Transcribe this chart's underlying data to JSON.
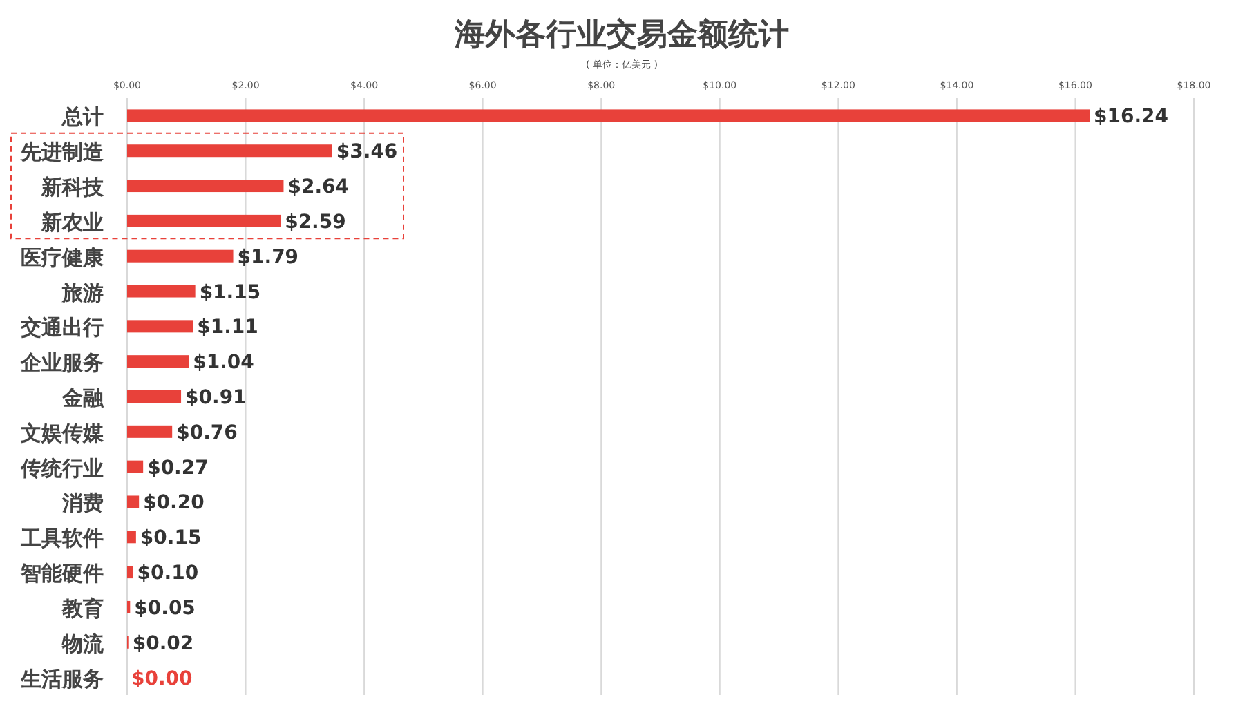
{
  "chart_data": {
    "type": "bar",
    "orientation": "horizontal",
    "title": "海外各行业交易金额统计",
    "subtitle": "( 单位：亿美元 )",
    "categories": [
      "总计",
      "先进制造",
      "新科技",
      "新农业",
      "医疗健康",
      "旅游",
      "交通出行",
      "企业服务",
      "金融",
      "文娱传媒",
      "传统行业",
      "消费",
      "工具软件",
      "智能硬件",
      "教育",
      "物流",
      "生活服务"
    ],
    "values": [
      16.24,
      3.46,
      2.64,
      2.59,
      1.79,
      1.15,
      1.11,
      1.04,
      0.91,
      0.76,
      0.27,
      0.2,
      0.15,
      0.1,
      0.05,
      0.02,
      0.0
    ],
    "value_labels": [
      "$16.24",
      "$3.46",
      "$2.64",
      "$2.59",
      "$1.79",
      "$1.15",
      "$1.11",
      "$1.04",
      "$0.91",
      "$0.76",
      "$0.27",
      "$0.20",
      "$0.15",
      "$0.10",
      "$0.05",
      "$0.02",
      "$0.00"
    ],
    "color": "#e8413a",
    "xlim": [
      0,
      18
    ],
    "xticks": [
      {
        "value": 0,
        "label": "$0.00"
      },
      {
        "value": 2,
        "label": "$2.00"
      },
      {
        "value": 4,
        "label": "$4.00"
      },
      {
        "value": 6,
        "label": "$6.00"
      },
      {
        "value": 8,
        "label": "$8.00"
      },
      {
        "value": 10,
        "label": "$10.00"
      },
      {
        "value": 12,
        "label": "$12.00"
      },
      {
        "value": 14,
        "label": "$14.00"
      },
      {
        "value": 16,
        "label": "$16.00"
      },
      {
        "value": 18,
        "label": "$18.00"
      }
    ],
    "grid": "x"
  }
}
